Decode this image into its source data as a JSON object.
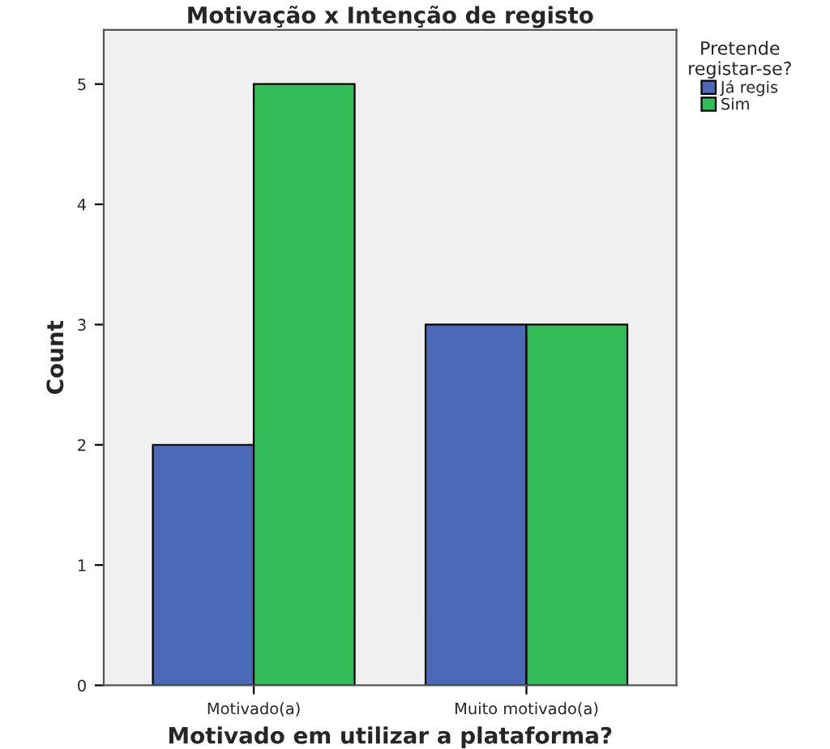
{
  "chart_data": {
    "type": "bar",
    "title": "Motivação x Intenção de registo",
    "xlabel": "Motivado em utilizar a plataforma?",
    "ylabel": "Count",
    "legend_title": "Pretende\nregistar-se?",
    "categories": [
      "Motivado(a)",
      "Muito motivado(a)"
    ],
    "series": [
      {
        "name": "Já regis",
        "color": "#4a6ab8",
        "values": [
          2,
          3
        ]
      },
      {
        "name": "Sim",
        "color": "#33bd58",
        "values": [
          5,
          3
        ]
      }
    ],
    "ylim": [
      0,
      5.45
    ],
    "yticks": [
      0,
      1,
      2,
      3,
      4,
      5
    ],
    "grid": false,
    "legend": "top right"
  }
}
